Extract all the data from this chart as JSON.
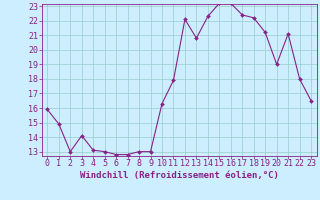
{
  "x": [
    0,
    1,
    2,
    3,
    4,
    5,
    6,
    7,
    8,
    9,
    10,
    11,
    12,
    13,
    14,
    15,
    16,
    17,
    18,
    19,
    20,
    21,
    22,
    23
  ],
  "y": [
    15.9,
    14.9,
    13.0,
    14.1,
    13.1,
    13.0,
    12.8,
    12.8,
    13.0,
    13.0,
    16.3,
    17.9,
    22.1,
    20.8,
    22.3,
    23.2,
    23.2,
    22.4,
    22.2,
    21.2,
    19.0,
    21.1,
    18.0,
    16.5
  ],
  "line_color": "#882288",
  "marker": "D",
  "marker_size": 2.0,
  "bg_color": "#cceeff",
  "grid_color": "#99cccc",
  "xlabel": "Windchill (Refroidissement éolien,°C)",
  "xlim": [
    -0.5,
    23.5
  ],
  "ylim": [
    13.0,
    23.0
  ],
  "yticks": [
    13,
    14,
    15,
    16,
    17,
    18,
    19,
    20,
    21,
    22,
    23
  ],
  "xticks": [
    0,
    1,
    2,
    3,
    4,
    5,
    6,
    7,
    8,
    9,
    10,
    11,
    12,
    13,
    14,
    15,
    16,
    17,
    18,
    19,
    20,
    21,
    22,
    23
  ],
  "axis_color": "#882288",
  "label_fontsize": 6.5,
  "tick_fontsize": 6.0,
  "linewidth": 0.8
}
